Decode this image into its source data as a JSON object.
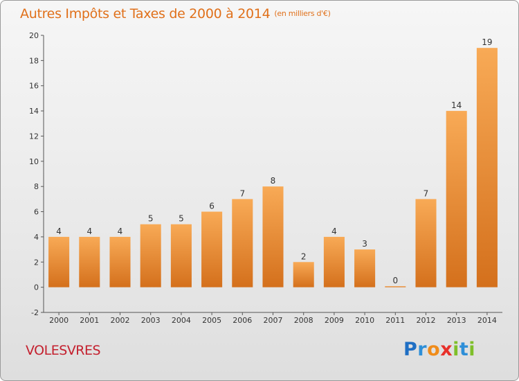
{
  "header": {
    "title": "Autres Impôts et Taxes de 2000 à 2014",
    "unit": "(en milliers d'€)"
  },
  "footer": {
    "commune": "VOLESVRES",
    "logo_text": "Proxiti",
    "logo_letters": [
      {
        "ch": "P",
        "color": "#1f6fc4"
      },
      {
        "ch": "r",
        "color": "#2e8fd8"
      },
      {
        "ch": "o",
        "color": "#f08c1a"
      },
      {
        "ch": "x",
        "color": "#e8302a"
      },
      {
        "ch": "i",
        "color": "#7fbf2a"
      },
      {
        "ch": "t",
        "color": "#2e8fd8"
      },
      {
        "ch": "i",
        "color": "#7fbf2a"
      }
    ]
  },
  "colors": {
    "title": "#e0701a",
    "commune": "#c4202e",
    "bar_top": "#f8aa56",
    "bar_bottom": "#d4701c"
  },
  "chart_data": {
    "type": "bar",
    "title": "Autres Impôts et Taxes de 2000 à 2014",
    "subtitle": "(en milliers d'€)",
    "categories": [
      "2000",
      "2001",
      "2002",
      "2003",
      "2004",
      "2005",
      "2006",
      "2007",
      "2008",
      "2009",
      "2010",
      "2011",
      "2012",
      "2013",
      "2014"
    ],
    "values": [
      4,
      4,
      4,
      5,
      5,
      6,
      7,
      8,
      2,
      4,
      3,
      0,
      7,
      14,
      19
    ],
    "ylim": [
      -2,
      20
    ],
    "yticks": [
      -2,
      0,
      2,
      4,
      6,
      8,
      10,
      12,
      14,
      16,
      18,
      20
    ],
    "grid": false,
    "legend": "none"
  }
}
